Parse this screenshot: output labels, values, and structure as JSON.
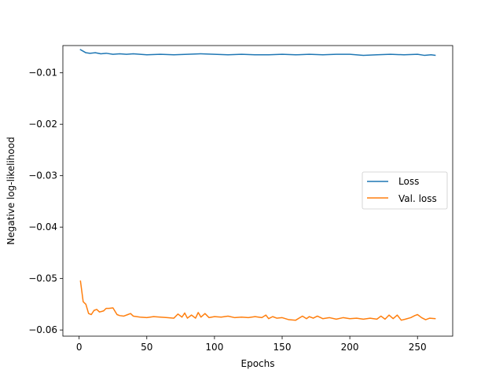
{
  "chart_data": {
    "type": "line",
    "xlabel": "Epochs",
    "ylabel": "Negative log-likelihood",
    "xlim": [
      -12,
      276
    ],
    "ylim": [
      -0.0612,
      -0.0047
    ],
    "xticks": [
      0,
      50,
      100,
      150,
      200,
      250
    ],
    "xtick_labels": [
      "0",
      "50",
      "100",
      "150",
      "200",
      "250"
    ],
    "yticks": [
      -0.01,
      -0.02,
      -0.03,
      -0.04,
      -0.05,
      -0.06
    ],
    "ytick_labels": [
      "−0.01",
      "−0.02",
      "−0.03",
      "−0.04",
      "−0.05",
      "−0.06"
    ],
    "grid": false,
    "legend_position": "center-right",
    "series": [
      {
        "name": "Loss",
        "color": "#1f77b4",
        "x": [
          1,
          3,
          5,
          8,
          12,
          16,
          20,
          25,
          30,
          35,
          40,
          50,
          60,
          70,
          80,
          90,
          100,
          110,
          120,
          130,
          140,
          150,
          160,
          170,
          180,
          190,
          200,
          210,
          220,
          230,
          240,
          250,
          255,
          260,
          263
        ],
        "values": [
          -0.0055,
          -0.0058,
          -0.0061,
          -0.0062,
          -0.0061,
          -0.0063,
          -0.0062,
          -0.0064,
          -0.0063,
          -0.0064,
          -0.0063,
          -0.0065,
          -0.0064,
          -0.0065,
          -0.0064,
          -0.0063,
          -0.0064,
          -0.0065,
          -0.0064,
          -0.0065,
          -0.0065,
          -0.0064,
          -0.0065,
          -0.0064,
          -0.0065,
          -0.0064,
          -0.0064,
          -0.0066,
          -0.0065,
          -0.0064,
          -0.0065,
          -0.0064,
          -0.0066,
          -0.0065,
          -0.0066
        ]
      },
      {
        "name": "Val. loss",
        "color": "#ff7f0e",
        "x": [
          1,
          3,
          5,
          7,
          9,
          11,
          13,
          15,
          18,
          20,
          22,
          25,
          28,
          30,
          33,
          36,
          38,
          40,
          45,
          50,
          55,
          60,
          65,
          70,
          73,
          76,
          78,
          80,
          83,
          86,
          88,
          90,
          93,
          96,
          100,
          105,
          110,
          115,
          120,
          125,
          130,
          135,
          138,
          140,
          143,
          146,
          150,
          155,
          160,
          165,
          168,
          170,
          173,
          176,
          180,
          185,
          190,
          195,
          200,
          205,
          210,
          215,
          220,
          223,
          226,
          229,
          232,
          235,
          238,
          241,
          245,
          248,
          250,
          253,
          256,
          259,
          263
        ],
        "values": [
          -0.0505,
          -0.0545,
          -0.055,
          -0.0568,
          -0.057,
          -0.0562,
          -0.056,
          -0.0565,
          -0.0563,
          -0.0558,
          -0.0558,
          -0.0557,
          -0.057,
          -0.0572,
          -0.0573,
          -0.057,
          -0.0568,
          -0.0573,
          -0.0575,
          -0.0576,
          -0.0574,
          -0.0575,
          -0.0576,
          -0.0577,
          -0.0569,
          -0.0575,
          -0.0567,
          -0.0577,
          -0.0571,
          -0.0577,
          -0.0566,
          -0.0575,
          -0.0568,
          -0.0576,
          -0.0574,
          -0.0575,
          -0.0573,
          -0.0576,
          -0.0575,
          -0.0576,
          -0.0574,
          -0.0576,
          -0.0571,
          -0.0578,
          -0.0574,
          -0.0577,
          -0.0576,
          -0.058,
          -0.0581,
          -0.0573,
          -0.0578,
          -0.0574,
          -0.0577,
          -0.0573,
          -0.0578,
          -0.0576,
          -0.0579,
          -0.0576,
          -0.0578,
          -0.0577,
          -0.0579,
          -0.0577,
          -0.0579,
          -0.0573,
          -0.0579,
          -0.0571,
          -0.0578,
          -0.0571,
          -0.0581,
          -0.0579,
          -0.0576,
          -0.0572,
          -0.057,
          -0.0576,
          -0.058,
          -0.0577,
          -0.0578
        ]
      }
    ]
  }
}
